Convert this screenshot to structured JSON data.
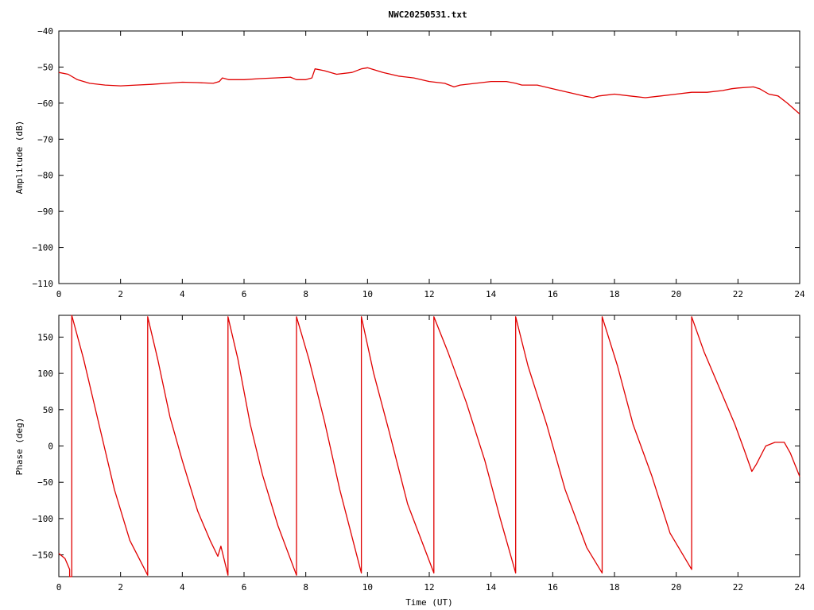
{
  "title": "NWC20250531.txt",
  "colors": {
    "series": "#e00000",
    "axis": "#000000",
    "background": "#ffffff"
  },
  "chart_data": [
    {
      "type": "line",
      "title": "NWC20250531.txt",
      "xlabel": "",
      "ylabel": "Amplitude (dB)",
      "xlim": [
        0,
        24
      ],
      "ylim": [
        -110,
        -40
      ],
      "xticks": [
        0,
        2,
        4,
        6,
        8,
        10,
        12,
        14,
        16,
        18,
        20,
        22,
        24
      ],
      "yticks": [
        -110,
        -100,
        -90,
        -80,
        -70,
        -60,
        -50,
        -40
      ],
      "xtick_labels": [
        "0",
        "2",
        "4",
        "6",
        "8",
        "10",
        "12",
        "14",
        "16",
        "18",
        "20",
        "22",
        "24"
      ],
      "ytick_labels": [
        "−110",
        "−100",
        "−90",
        "−80",
        "−70",
        "−60",
        "−50",
        "−40"
      ],
      "grid": false,
      "series": [
        {
          "x": [
            0,
            0.3,
            0.6,
            1.0,
            1.5,
            2.0,
            2.5,
            3.0,
            3.5,
            4.0,
            4.5,
            5.0,
            5.2,
            5.3,
            5.5,
            6.0,
            6.5,
            7.0,
            7.5,
            7.7,
            8.0,
            8.2,
            8.3,
            8.6,
            9.0,
            9.5,
            9.8,
            10.0,
            10.5,
            11.0,
            11.5,
            12.0,
            12.5,
            12.8,
            13.0,
            13.5,
            14.0,
            14.5,
            14.8,
            15.0,
            15.5,
            16.0,
            16.5,
            17.0,
            17.3,
            17.5,
            18.0,
            18.5,
            19.0,
            19.5,
            20.0,
            20.5,
            21.0,
            21.5,
            21.8,
            22.0,
            22.5,
            22.7,
            23.0,
            23.3,
            23.6,
            24.0
          ],
          "y": [
            -51.5,
            -52,
            -53.5,
            -54.5,
            -55,
            -55.2,
            -55,
            -54.8,
            -54.5,
            -54.2,
            -54.3,
            -54.5,
            -54,
            -53,
            -53.5,
            -53.5,
            -53.2,
            -53,
            -52.8,
            -53.5,
            -53.5,
            -53,
            -50.5,
            -51,
            -52,
            -51.5,
            -50.5,
            -50.2,
            -51.5,
            -52.5,
            -53,
            -54,
            -54.5,
            -55.5,
            -55,
            -54.5,
            -54,
            -54,
            -54.5,
            -55,
            -55,
            -56,
            -57,
            -58,
            -58.5,
            -58,
            -57.5,
            -58,
            -58.5,
            -58,
            -57.5,
            -57,
            -57,
            -56.5,
            -56,
            -55.8,
            -55.5,
            -56,
            -57.5,
            -58,
            -60,
            -63
          ]
        }
      ]
    },
    {
      "type": "line",
      "title": "",
      "xlabel": "Time (UT)",
      "ylabel": "Phase (deg)",
      "xlim": [
        0,
        24
      ],
      "ylim": [
        -180,
        180
      ],
      "xticks": [
        0,
        2,
        4,
        6,
        8,
        10,
        12,
        14,
        16,
        18,
        20,
        22,
        24
      ],
      "yticks": [
        -150,
        -100,
        -50,
        0,
        50,
        100,
        150
      ],
      "xtick_labels": [
        "0",
        "2",
        "4",
        "6",
        "8",
        "10",
        "12",
        "14",
        "16",
        "18",
        "20",
        "22",
        "24"
      ],
      "ytick_labels": [
        "−150",
        "−100",
        "−50",
        "0",
        "50",
        "100",
        "150"
      ],
      "grid": false,
      "series": [
        {
          "x": [
            0,
            0.2,
            0.35,
            0.35,
            0.42,
            0.42,
            0.8,
            1.3,
            1.8,
            2.3,
            2.88,
            2.88,
            3.2,
            3.6,
            4.0,
            4.5,
            4.9,
            5.15,
            5.25,
            5.48,
            5.48,
            5.8,
            6.2,
            6.6,
            7.1,
            7.7,
            7.7,
            8.1,
            8.6,
            9.1,
            9.8,
            9.8,
            10.2,
            10.7,
            11.3,
            12.15,
            12.15,
            12.6,
            13.2,
            13.8,
            14.3,
            14.8,
            14.8,
            15.2,
            15.8,
            16.4,
            17.1,
            17.6,
            17.6,
            18.1,
            18.6,
            19.2,
            19.8,
            20.5,
            20.5,
            20.9,
            21.4,
            21.9,
            22.2,
            22.45,
            22.6,
            22.9,
            23.2,
            23.5,
            23.7,
            24.0
          ],
          "y": [
            -148,
            -155,
            -170,
            -180,
            -180,
            180,
            120,
            30,
            -60,
            -130,
            -178,
            178,
            120,
            40,
            -20,
            -90,
            -130,
            -152,
            -138,
            -178,
            178,
            120,
            30,
            -40,
            -110,
            -178,
            178,
            120,
            35,
            -60,
            -175,
            178,
            100,
            20,
            -80,
            -175,
            178,
            130,
            60,
            -20,
            -100,
            -175,
            178,
            110,
            30,
            -60,
            -140,
            -175,
            178,
            110,
            30,
            -40,
            -120,
            -170,
            178,
            130,
            80,
            30,
            -5,
            -35,
            -25,
            0,
            5,
            5,
            -10,
            -42
          ]
        }
      ]
    }
  ]
}
